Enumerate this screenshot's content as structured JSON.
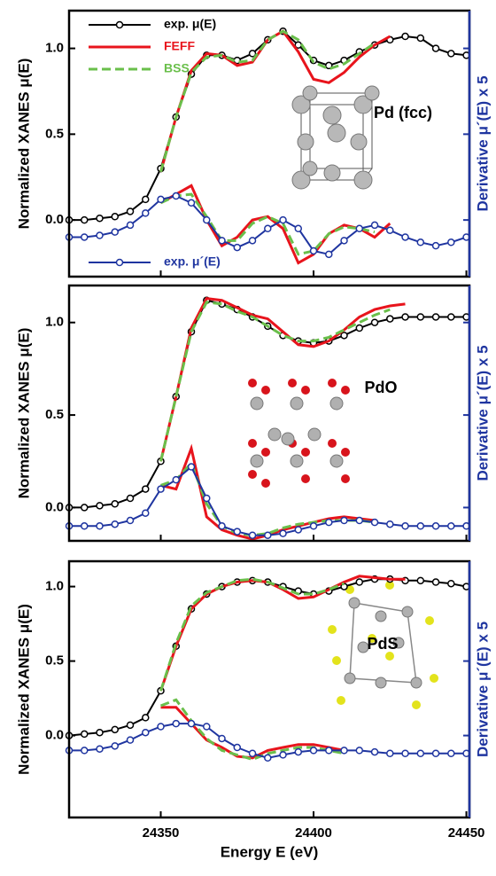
{
  "chart_data": [
    {
      "type": "line",
      "label": "Pd (fcc)",
      "ylabel": "Normalized XANES μ(E)",
      "y2label": "Derivative μ´(E) x 5",
      "legend": true,
      "x": [
        24320,
        24325,
        24330,
        24335,
        24340,
        24345,
        24350,
        24355,
        24360,
        24365,
        24370,
        24375,
        24380,
        24385,
        24390,
        24395,
        24400,
        24405,
        24410,
        24415,
        24420,
        24425,
        24430,
        24435,
        24440,
        24445,
        24450
      ],
      "xlim": [
        24320,
        24451
      ],
      "xticks": [
        24350,
        24400,
        24450
      ],
      "ylim": [
        -0.33,
        1.22
      ],
      "yticks": [
        {
          "value": 0,
          "label": "0.0"
        },
        {
          "value": 0.5,
          "label": "0.5"
        },
        {
          "value": 1,
          "label": "1.0"
        }
      ],
      "series": [
        {
          "name": "exp. μ(E)",
          "color": "#000000",
          "marker": "circle",
          "values": [
            0.0,
            0.0,
            0.01,
            0.02,
            0.05,
            0.12,
            0.3,
            0.6,
            0.85,
            0.96,
            0.96,
            0.93,
            0.97,
            1.05,
            1.1,
            1.02,
            0.93,
            0.9,
            0.93,
            0.98,
            1.02,
            1.05,
            1.07,
            1.06,
            1.0,
            0.97,
            0.96
          ]
        },
        {
          "name": "FEFF",
          "color": "#e8141c",
          "values": [
            null,
            null,
            null,
            null,
            null,
            null,
            0.28,
            0.6,
            0.87,
            0.97,
            0.96,
            0.9,
            0.92,
            1.05,
            1.1,
            0.98,
            0.82,
            0.8,
            0.86,
            0.95,
            1.02,
            1.07,
            null,
            null,
            null,
            null,
            null
          ],
          "derivative": [
            null,
            null,
            null,
            null,
            null,
            null,
            0.1,
            0.15,
            0.2,
            0.0,
            -0.15,
            -0.1,
            0.0,
            0.02,
            -0.05,
            -0.25,
            -0.2,
            -0.08,
            -0.03,
            -0.05,
            -0.1,
            -0.02,
            null,
            null,
            null,
            null,
            null
          ]
        },
        {
          "name": "BSS",
          "color": "#6abf4b",
          "dash": true,
          "values": [
            null,
            null,
            null,
            null,
            null,
            null,
            0.28,
            0.6,
            0.86,
            0.95,
            0.96,
            0.92,
            0.93,
            1.05,
            1.1,
            1.05,
            0.92,
            0.88,
            0.91,
            0.97,
            1.03,
            null,
            null,
            null,
            null,
            null,
            null
          ],
          "derivative": [
            null,
            null,
            null,
            null,
            null,
            null,
            0.1,
            0.14,
            0.15,
            0.02,
            -0.12,
            -0.12,
            -0.02,
            0.02,
            -0.02,
            -0.2,
            -0.18,
            -0.08,
            -0.04,
            -0.05,
            -0.07,
            null,
            null,
            null,
            null,
            null,
            null
          ]
        },
        {
          "name": "exp. μ´(E)",
          "color": "#1f35a0",
          "marker": "circle",
          "values": [
            -0.1,
            -0.1,
            -0.09,
            -0.07,
            -0.03,
            0.04,
            0.12,
            0.14,
            0.1,
            0.0,
            -0.12,
            -0.16,
            -0.12,
            -0.05,
            0.0,
            -0.05,
            -0.18,
            -0.2,
            -0.12,
            -0.05,
            -0.03,
            -0.06,
            -0.1,
            -0.13,
            -0.15,
            -0.13,
            -0.1
          ]
        }
      ]
    },
    {
      "type": "line",
      "label": "PdO",
      "ylabel": "Normalized XANES μ(E)",
      "y2label": "Derivative μ´(E) x 5",
      "x": [
        24320,
        24325,
        24330,
        24335,
        24340,
        24345,
        24350,
        24355,
        24360,
        24365,
        24370,
        24375,
        24380,
        24385,
        24390,
        24395,
        24400,
        24405,
        24410,
        24415,
        24420,
        24425,
        24430,
        24435,
        24440,
        24445,
        24450
      ],
      "xlim": [
        24320,
        24451
      ],
      "xticks": [
        24350,
        24400,
        24450
      ],
      "ylim": [
        -0.18,
        1.2
      ],
      "yticks": [
        {
          "value": 0,
          "label": "0.0"
        },
        {
          "value": 0.5,
          "label": "0.5"
        },
        {
          "value": 1,
          "label": "1.0"
        }
      ],
      "series": [
        {
          "color": "#000000",
          "marker": "circle",
          "values": [
            0.0,
            0.0,
            0.01,
            0.02,
            0.05,
            0.1,
            0.25,
            0.6,
            0.95,
            1.12,
            1.1,
            1.07,
            1.03,
            0.98,
            0.93,
            0.9,
            0.89,
            0.9,
            0.93,
            0.97,
            1.0,
            1.02,
            1.03,
            1.03,
            1.03,
            1.03,
            1.03
          ]
        },
        {
          "color": "#e8141c",
          "values": [
            null,
            null,
            null,
            null,
            null,
            null,
            0.25,
            0.6,
            0.97,
            1.13,
            1.12,
            1.08,
            1.04,
            1.02,
            0.95,
            0.88,
            0.87,
            0.9,
            0.96,
            1.03,
            1.07,
            1.09,
            1.1,
            null,
            null,
            null,
            null
          ],
          "derivative": [
            null,
            null,
            null,
            null,
            null,
            null,
            0.12,
            0.1,
            0.32,
            -0.05,
            -0.12,
            -0.15,
            -0.17,
            -0.15,
            -0.12,
            -0.1,
            -0.08,
            -0.06,
            -0.05,
            -0.06,
            -0.07,
            null,
            null,
            null,
            null,
            null,
            null
          ]
        },
        {
          "color": "#6abf4b",
          "dash": true,
          "values": [
            null,
            null,
            null,
            null,
            null,
            null,
            0.25,
            0.6,
            0.95,
            1.11,
            1.1,
            1.06,
            1.03,
            0.98,
            0.93,
            0.9,
            0.9,
            0.92,
            0.96,
            1.0,
            1.04,
            1.07,
            null,
            null,
            null,
            null,
            null
          ],
          "derivative": [
            null,
            null,
            null,
            null,
            null,
            null,
            0.12,
            0.15,
            0.24,
            0.02,
            -0.1,
            -0.14,
            -0.15,
            -0.14,
            -0.11,
            -0.09,
            -0.08,
            -0.07,
            -0.07,
            -0.07,
            -0.08,
            null,
            null,
            null,
            null,
            null,
            null
          ]
        },
        {
          "color": "#1f35a0",
          "marker": "circle",
          "values": [
            -0.1,
            -0.1,
            -0.1,
            -0.09,
            -0.07,
            -0.03,
            0.1,
            0.15,
            0.22,
            0.05,
            -0.1,
            -0.13,
            -0.15,
            -0.15,
            -0.14,
            -0.12,
            -0.1,
            -0.08,
            -0.07,
            -0.07,
            -0.08,
            -0.09,
            -0.1,
            -0.1,
            -0.1,
            -0.1,
            -0.1
          ]
        }
      ]
    },
    {
      "type": "line",
      "label": "PdS",
      "ylabel": "Normalized XANES μ(E)",
      "y2label": "Derivative μ´(E) x 5",
      "xlabel": "Energy E (eV)",
      "x": [
        24320,
        24325,
        24330,
        24335,
        24340,
        24345,
        24350,
        24355,
        24360,
        24365,
        24370,
        24375,
        24380,
        24385,
        24390,
        24395,
        24400,
        24405,
        24410,
        24415,
        24420,
        24425,
        24430,
        24435,
        24440,
        24445,
        24450
      ],
      "xlim": [
        24320,
        24451
      ],
      "xticks": [
        24350,
        24400,
        24450
      ],
      "ylim": [
        -0.55,
        1.17
      ],
      "yticks": [
        {
          "value": 0,
          "label": "0.0"
        },
        {
          "value": 0.5,
          "label": "0.5"
        },
        {
          "value": 1,
          "label": "1.0"
        }
      ],
      "series": [
        {
          "color": "#000000",
          "marker": "circle",
          "values": [
            0.0,
            0.01,
            0.02,
            0.04,
            0.07,
            0.12,
            0.3,
            0.6,
            0.85,
            0.95,
            1.0,
            1.03,
            1.04,
            1.03,
            1.0,
            0.97,
            0.95,
            0.97,
            1.0,
            1.03,
            1.05,
            1.05,
            1.04,
            1.04,
            1.03,
            1.02,
            1.0
          ]
        },
        {
          "color": "#e8141c",
          "values": [
            null,
            null,
            null,
            null,
            null,
            null,
            0.3,
            0.6,
            0.85,
            0.95,
            1.0,
            1.03,
            1.04,
            1.03,
            0.98,
            0.92,
            0.93,
            0.98,
            1.03,
            1.07,
            1.06,
            1.05,
            1.05,
            null,
            null,
            null,
            null
          ],
          "derivative": [
            null,
            null,
            null,
            null,
            null,
            null,
            0.19,
            0.19,
            0.08,
            -0.03,
            -0.08,
            -0.14,
            -0.15,
            -0.1,
            -0.08,
            -0.06,
            -0.06,
            -0.08,
            -0.1,
            null,
            null,
            null,
            null,
            null,
            null,
            null,
            null
          ]
        },
        {
          "color": "#6abf4b",
          "dash": true,
          "values": [
            null,
            null,
            null,
            null,
            null,
            null,
            0.3,
            0.62,
            0.87,
            0.96,
            1.0,
            1.04,
            1.05,
            1.03,
            0.99,
            0.95,
            0.95,
            0.98,
            1.02,
            null,
            null,
            null,
            null,
            null,
            null,
            null,
            null
          ],
          "derivative": [
            null,
            null,
            null,
            null,
            null,
            null,
            0.2,
            0.24,
            0.1,
            -0.02,
            -0.1,
            -0.13,
            -0.16,
            -0.12,
            -0.1,
            -0.08,
            -0.08,
            -0.1,
            -0.12,
            null,
            null,
            null,
            null,
            null,
            null,
            null,
            null
          ]
        },
        {
          "color": "#1f35a0",
          "marker": "circle",
          "values": [
            -0.1,
            -0.1,
            -0.09,
            -0.07,
            -0.03,
            0.02,
            0.06,
            0.08,
            0.08,
            0.06,
            -0.02,
            -0.08,
            -0.12,
            -0.15,
            -0.13,
            -0.11,
            -0.1,
            -0.1,
            -0.1,
            -0.1,
            -0.11,
            -0.12,
            -0.12,
            -0.12,
            -0.12,
            -0.12,
            -0.12
          ]
        }
      ]
    }
  ]
}
